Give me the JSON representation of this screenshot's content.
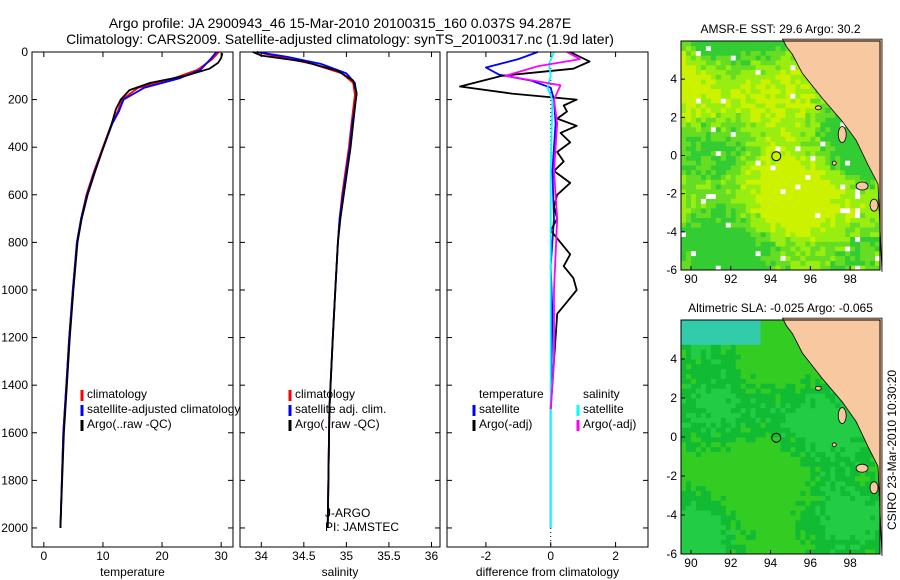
{
  "header": {
    "line1": "Argo profile: JA 2900943_46 15-Mar-2010 20100315_160 0.037S 94.287E",
    "line2": "Climatology: CARS2009. Satellite-adjusted climatology: synTS_20100317.nc (1.9d later)"
  },
  "credit": "CSIRO 23-Mar-2010 10:30:20",
  "chart_data": [
    {
      "type": "line",
      "xlabel": "temperature",
      "ylabel": "",
      "xlim": [
        -2,
        32
      ],
      "ylim": [
        2080,
        0
      ],
      "xticks": [
        0,
        10,
        20,
        30
      ],
      "yticks": [
        0,
        200,
        400,
        600,
        800,
        1000,
        1200,
        1400,
        1600,
        1800,
        2000
      ],
      "legend": [
        "climatology",
        "satellite-adjusted climatology",
        "Argo(..raw -QC)"
      ],
      "series": [
        {
          "name": "climatology",
          "color": "#ff0000",
          "x": [
            29.6,
            28.5,
            26,
            22,
            16,
            13.2,
            12.5,
            11.5,
            10,
            8.5,
            7.2,
            6.3,
            5.6,
            4.9,
            4.3,
            3.8,
            3.3,
            2.8
          ],
          "y": [
            0,
            30,
            75,
            110,
            150,
            200,
            250,
            300,
            400,
            500,
            600,
            700,
            800,
            1000,
            1200,
            1400,
            1600,
            2000
          ]
        },
        {
          "name": "satellite-adjusted climatology",
          "color": "#0000ff",
          "x": [
            29.2,
            28.2,
            26.5,
            23,
            17,
            13.5,
            12.7,
            11.6,
            10.1,
            8.6,
            7.3,
            6.3,
            5.6,
            4.9,
            4.3,
            3.8,
            3.3,
            2.8
          ],
          "y": [
            0,
            30,
            75,
            110,
            150,
            200,
            250,
            300,
            400,
            500,
            600,
            700,
            800,
            1000,
            1200,
            1400,
            1600,
            2000
          ]
        },
        {
          "name": "Argo(..raw -QC)",
          "color": "#000000",
          "x": [
            30.2,
            30.0,
            29.5,
            28,
            24,
            18,
            14.5,
            13.0,
            12.2,
            11.5,
            10.1,
            8.7,
            7.4,
            6.4,
            5.7,
            5.0,
            4.4,
            3.9,
            3.4,
            2.8
          ],
          "y": [
            5,
            25,
            45,
            70,
            100,
            130,
            160,
            200,
            240,
            300,
            400,
            500,
            600,
            700,
            800,
            1000,
            1200,
            1400,
            1600,
            2000
          ]
        }
      ]
    },
    {
      "type": "line",
      "xlabel": "salinity",
      "ylabel": "",
      "xlim": [
        33.75,
        36.1
      ],
      "ylim": [
        2080,
        0
      ],
      "xticks": [
        34,
        34.5,
        35,
        35.5,
        36
      ],
      "xtick_labels": [
        "34",
        "34.5",
        "35",
        "35.5",
        "36"
      ],
      "legend": [
        "climatology",
        "satellite adj. clim.",
        "Argo(..raw -QC)"
      ],
      "annotations": [
        "J-ARGO",
        "PI: JAMSTEC"
      ],
      "series": [
        {
          "name": "climatology",
          "color": "#ff0000",
          "x": [
            33.95,
            34.2,
            34.6,
            34.95,
            35.08,
            35.1,
            35.06,
            35.03,
            34.99,
            34.95,
            34.92,
            34.9,
            34.87,
            34.84,
            34.8,
            34.78
          ],
          "y": [
            0,
            20,
            50,
            90,
            130,
            180,
            300,
            400,
            500,
            600,
            700,
            800,
            1000,
            1200,
            1500,
            2000
          ]
        },
        {
          "name": "satellite adj. clim.",
          "color": "#0000ff",
          "x": [
            33.95,
            34.3,
            34.7,
            35.0,
            35.1,
            35.12,
            35.07,
            35.04,
            35.0,
            34.96,
            34.92,
            34.9,
            34.87,
            34.84,
            34.8,
            34.78
          ],
          "y": [
            0,
            20,
            50,
            90,
            130,
            180,
            300,
            400,
            500,
            600,
            700,
            800,
            1000,
            1200,
            1500,
            2000
          ]
        },
        {
          "name": "Argo(..raw -QC)",
          "color": "#000000",
          "x": [
            33.9,
            34.0,
            34.5,
            34.9,
            35.08,
            35.12,
            35.08,
            35.05,
            35.01,
            34.97,
            34.93,
            34.9,
            34.87,
            34.84,
            34.8,
            34.78
          ],
          "y": [
            0,
            15,
            40,
            80,
            120,
            170,
            300,
            400,
            500,
            600,
            700,
            800,
            1000,
            1200,
            1500,
            2000
          ]
        }
      ]
    },
    {
      "type": "line",
      "xlabel": "difference from climatology",
      "ylabel": "",
      "xlim": [
        -3.2,
        3.0
      ],
      "ylim": [
        2080,
        0
      ],
      "xticks": [
        -2,
        0,
        2
      ],
      "legend_groups": [
        {
          "title": "temperature",
          "entries": [
            "satellite",
            "Argo(-adj)"
          ]
        },
        {
          "title": "salinity",
          "entries": [
            "satellite",
            "Argo(-adj)"
          ]
        }
      ],
      "series": [
        {
          "name": "temperature satellite",
          "color": "#0000ff",
          "x": [
            -0.4,
            -1.0,
            -2.0,
            -1.6,
            -0.6,
            0.0,
            0.1,
            0.15,
            0.05,
            0.1,
            0.0,
            0.05,
            0.0,
            0.0
          ],
          "y": [
            0,
            30,
            65,
            95,
            120,
            150,
            200,
            300,
            500,
            700,
            900,
            1100,
            1500,
            2000
          ]
        },
        {
          "name": "temperature Argo(-adj)",
          "color": "#000000",
          "x": [
            0.6,
            1.2,
            0.7,
            -1.5,
            -2.8,
            -1.2,
            0.8,
            0.4,
            0.5,
            0.2,
            0.8,
            0.3,
            0.6,
            0.2,
            0.4,
            0.1,
            0.6,
            0.2,
            0.1,
            0.2,
            0.0,
            0.6,
            0.4,
            0.7,
            0.8,
            0.5,
            0.2,
            0.0
          ],
          "y": [
            0,
            40,
            70,
            100,
            145,
            175,
            200,
            225,
            250,
            280,
            310,
            340,
            380,
            420,
            460,
            500,
            550,
            600,
            650,
            700,
            750,
            850,
            900,
            950,
            1000,
            1050,
            1100,
            1500
          ]
        },
        {
          "name": "salinity satellite",
          "color": "#00ffff",
          "x": [
            0.1,
            -0.05,
            0.0,
            -0.1,
            0.05,
            0.0,
            0.0,
            0.0
          ],
          "y": [
            0,
            50,
            100,
            150,
            200,
            500,
            1000,
            2000
          ]
        },
        {
          "name": "salinity Argo(-adj)",
          "color": "#ff00ff",
          "x": [
            0.5,
            0.9,
            -0.4,
            -1.4,
            0.3,
            0.1,
            0.2,
            0.1,
            0.2,
            0.1,
            0.1,
            0.0
          ],
          "y": [
            0,
            30,
            60,
            100,
            140,
            200,
            300,
            500,
            700,
            1000,
            1300,
            1500
          ]
        }
      ]
    },
    {
      "type": "heatmap",
      "title": "AMSR-E SST: 29.6 Argo: 30.2",
      "xlim": [
        89.5,
        99.5
      ],
      "ylim": [
        -6,
        6
      ],
      "xticks": [
        90,
        92,
        94,
        96,
        98
      ],
      "yticks": [
        -6,
        -4,
        -2,
        0,
        2,
        4
      ],
      "argo_position": {
        "lon": 94.287,
        "lat": -0.037
      }
    },
    {
      "type": "heatmap",
      "title": "Altimetric SLA: -0.025 Argo: -0.065",
      "xlim": [
        89.5,
        99.5
      ],
      "ylim": [
        -6,
        6
      ],
      "xticks": [
        90,
        92,
        94,
        96,
        98
      ],
      "yticks": [
        -6,
        -4,
        -2,
        0,
        2,
        4
      ],
      "argo_position": {
        "lon": 94.287,
        "lat": -0.037
      }
    }
  ]
}
